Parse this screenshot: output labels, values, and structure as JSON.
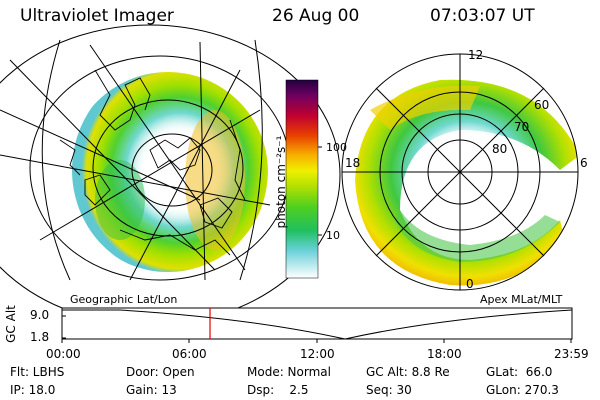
{
  "header": {
    "instrument": "Ultraviolet Imager",
    "date": "26 Aug 00",
    "time": "07:03:07 UT"
  },
  "colorbar": {
    "unit_label": "photon cm⁻²s⁻¹",
    "tick_100": "100",
    "tick_10": "10",
    "scale": "log",
    "colors": [
      "#ffffff",
      "#58c8d8",
      "#20c020",
      "#a8e000",
      "#f0f000",
      "#f8b000",
      "#e04000",
      "#c00040",
      "#300050"
    ]
  },
  "left_map": {
    "caption": "Geographic Lat/Lon"
  },
  "right_map": {
    "caption": "Apex MLat/MLT",
    "mlt_12": "12",
    "mlt_6": "6",
    "mlt_18": "18",
    "mlt_0": "0",
    "lat_60": "60",
    "lat_70": "70",
    "lat_80": "80"
  },
  "altitude_plot": {
    "ylabel": "GC Alt",
    "ytick_top": "9.0",
    "ytick_bottom": "1.8",
    "xticks": [
      "00:00",
      "06:00",
      "12:00",
      "18:00",
      "23:59"
    ],
    "marker_color": "#e00000",
    "marker_time": "07:03"
  },
  "info_rows": [
    [
      "Flt: LBHS",
      "Door: Open",
      "Mode: Normal",
      "GC Alt: 8.8 Re",
      "GLat:  66.0"
    ],
    [
      "IP: 18.0",
      "Gain: 13",
      "Dsp:    2.5",
      "Seq: 30",
      "GLon: 270.3"
    ]
  ]
}
